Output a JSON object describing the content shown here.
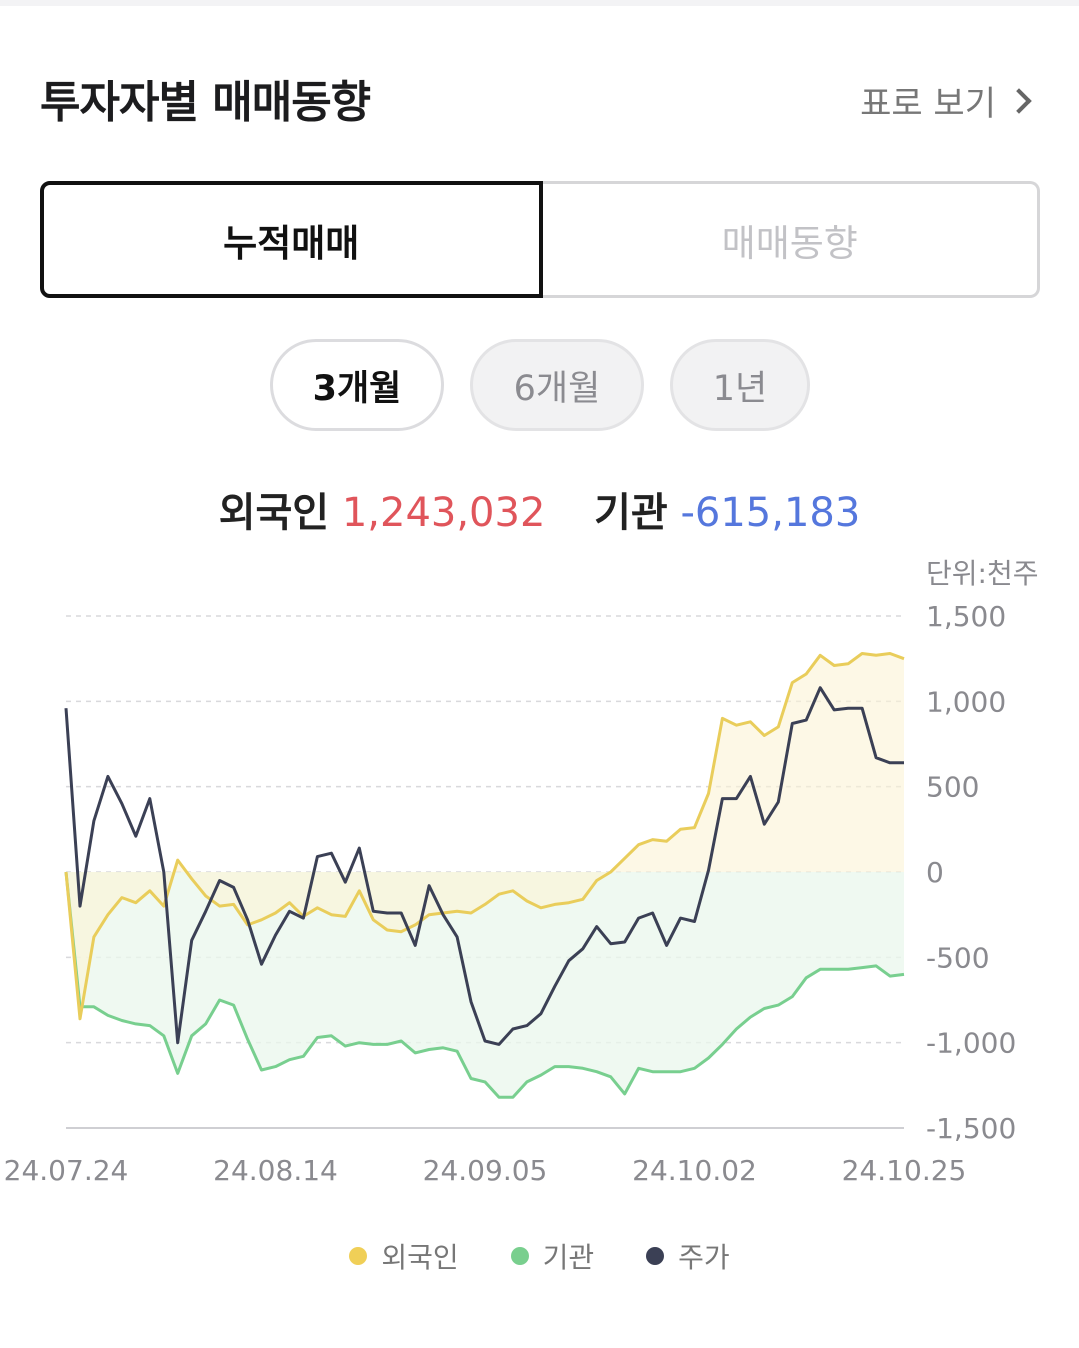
{
  "header": {
    "title": "투자자별 매매동향",
    "table_link": "표로 보기"
  },
  "tabs": [
    {
      "label": "누적매매",
      "selected": true
    },
    {
      "label": "매매동향",
      "selected": false
    }
  ],
  "periods": [
    {
      "label": "3개월",
      "selected": true
    },
    {
      "label": "6개월",
      "selected": false
    },
    {
      "label": "1년",
      "selected": false
    }
  ],
  "summary": {
    "foreign_label": "외국인",
    "foreign_value": "1,243,032",
    "inst_label": "기관",
    "inst_value": "-615,183"
  },
  "unit": "단위:천주",
  "colors": {
    "foreign": "#e9cd5b",
    "institution": "#78cf8f",
    "price": "#3b4055",
    "positive": "#e0555b",
    "negative": "#5577dd"
  },
  "legend": [
    {
      "label": "외국인",
      "color": "#f0cf57"
    },
    {
      "label": "기관",
      "color": "#79cf8e"
    },
    {
      "label": "주가",
      "color": "#3b4055"
    }
  ],
  "chart_data": {
    "type": "line",
    "title": "",
    "ylim": [
      -1500,
      1500
    ],
    "y_ticks": [
      "1,500",
      "1,000",
      "500",
      "0",
      "-500",
      "-1,000",
      "-1,500"
    ],
    "y_tick_values": [
      1500,
      1000,
      500,
      0,
      -500,
      -1000,
      -1500
    ],
    "x_tick_labels": [
      "24.07.24",
      "24.08.14",
      "24.09.05",
      "24.10.02",
      "24.10.25"
    ],
    "x_tick_index": [
      0,
      15,
      30,
      45,
      60
    ],
    "series": [
      {
        "name": "외국인",
        "values": [
          0,
          -860,
          -380,
          -250,
          -150,
          -180,
          -110,
          -200,
          70,
          -40,
          -140,
          -200,
          -190,
          -310,
          -280,
          -240,
          -180,
          -260,
          -210,
          -250,
          -260,
          -110,
          -280,
          -340,
          -350,
          -310,
          -250,
          -240,
          -230,
          -240,
          -190,
          -130,
          -110,
          -170,
          -210,
          -190,
          -180,
          -160,
          -50,
          0,
          80,
          160,
          190,
          180,
          250,
          260,
          460,
          900,
          860,
          880,
          800,
          850,
          1110,
          1160,
          1270,
          1210,
          1220,
          1280,
          1270,
          1280,
          1250
        ]
      },
      {
        "name": "기관",
        "values": [
          0,
          -790,
          -790,
          -840,
          -870,
          -890,
          -900,
          -960,
          -1180,
          -960,
          -890,
          -750,
          -780,
          -980,
          -1160,
          -1140,
          -1100,
          -1080,
          -970,
          -960,
          -1020,
          -1000,
          -1010,
          -1010,
          -990,
          -1060,
          -1040,
          -1030,
          -1050,
          -1210,
          -1230,
          -1320,
          -1320,
          -1230,
          -1190,
          -1140,
          -1140,
          -1150,
          -1170,
          -1200,
          -1300,
          -1150,
          -1170,
          -1170,
          -1170,
          -1150,
          -1090,
          -1010,
          -920,
          -850,
          -800,
          -780,
          -730,
          -620,
          -570,
          -570,
          -570,
          -560,
          -550,
          -610,
          -600
        ]
      },
      {
        "name": "주가",
        "values": [
          960,
          -200,
          300,
          560,
          400,
          210,
          430,
          0,
          -1000,
          -400,
          -230,
          -50,
          -90,
          -280,
          -540,
          -370,
          -230,
          -270,
          90,
          110,
          -60,
          140,
          -230,
          -240,
          -240,
          -430,
          -80,
          -250,
          -380,
          -760,
          -990,
          -1010,
          -920,
          -900,
          -830,
          -670,
          -520,
          -450,
          -320,
          -420,
          -410,
          -270,
          -240,
          -430,
          -270,
          -290,
          10,
          430,
          430,
          560,
          280,
          410,
          870,
          890,
          1080,
          950,
          960,
          960,
          670,
          640,
          640
        ]
      }
    ]
  }
}
